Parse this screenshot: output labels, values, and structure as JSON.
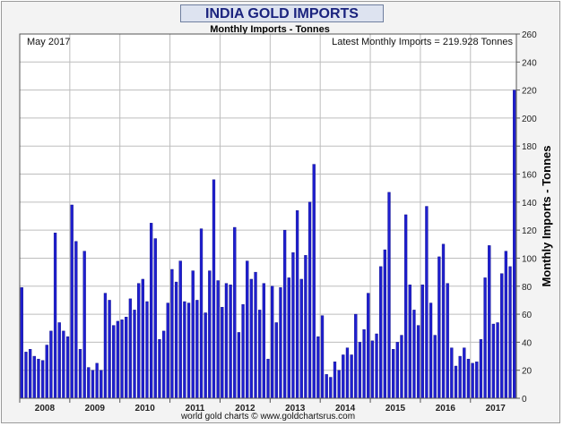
{
  "title": "INDIA GOLD IMPORTS",
  "subtitle": "Monthly Imports - Tonnes",
  "date_label": "May 2017",
  "latest_label": "Latest Monthly Imports = 219.928 Tonnes",
  "credit": "world gold charts © www.goldchartsrus.com",
  "colors": {
    "bar": "#1f1fd0",
    "bar_edge": "#0a0a80",
    "grid": "#bdbdbd",
    "plot_bg": "#ffffff"
  },
  "chart_data": {
    "type": "bar",
    "title": "INDIA GOLD IMPORTS",
    "subtitle": "Monthly Imports - Tonnes",
    "ylabel": "Monthly Imports - Tonnes",
    "xlabel": "",
    "ylim": [
      0,
      260
    ],
    "yticks": [
      0,
      20,
      40,
      60,
      80,
      100,
      120,
      140,
      160,
      180,
      200,
      220,
      240,
      260
    ],
    "year_labels": [
      "2008",
      "2009",
      "2010",
      "2011",
      "2012",
      "2013",
      "2014",
      "2015",
      "2016",
      "2017"
    ],
    "year_start_index": [
      0,
      12,
      24,
      36,
      48,
      60,
      72,
      84,
      96,
      108
    ],
    "start_month": "2008-01",
    "values": [
      79,
      33,
      35,
      30,
      28,
      27,
      38,
      48,
      118,
      54,
      48,
      44,
      138,
      112,
      35,
      105,
      22,
      20,
      25,
      20,
      75,
      70,
      52,
      55,
      56,
      58,
      71,
      63,
      82,
      85,
      69,
      125,
      114,
      42,
      48,
      68,
      92,
      83,
      98,
      69,
      68,
      91,
      70,
      121,
      61,
      91,
      156,
      84,
      65,
      82,
      81,
      122,
      47,
      67,
      98,
      85,
      90,
      63,
      82,
      28,
      80,
      54,
      79,
      120,
      86,
      104,
      134,
      85,
      102,
      140,
      167,
      44,
      59,
      17,
      15,
      26,
      20,
      31,
      36,
      31,
      60,
      40,
      49,
      75,
      41,
      46,
      94,
      106,
      147,
      35,
      40,
      45,
      131,
      81,
      63,
      52,
      81,
      137,
      68,
      45,
      101,
      110,
      82,
      36,
      23,
      30,
      36,
      28,
      25,
      26,
      42,
      86,
      109,
      53,
      54,
      89,
      105,
      94,
      220
    ]
  }
}
